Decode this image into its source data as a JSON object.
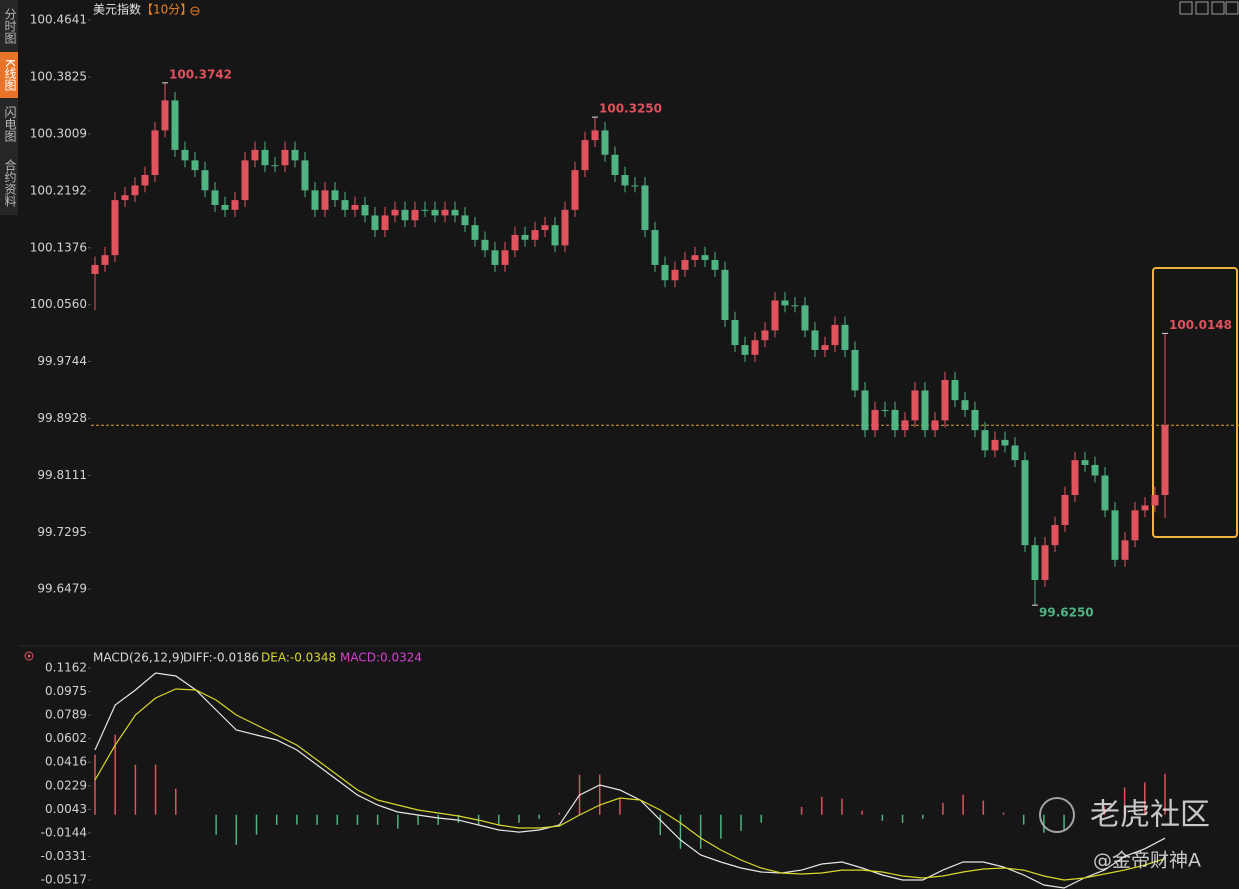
{
  "sidebar": [
    "分时图",
    "K线图",
    "闪电图",
    "合约资料"
  ],
  "chart_data": [
    {
      "type": "candlestick",
      "title": "美元指数",
      "period": "【10分】",
      "up_color": "#e0525d",
      "down_color": "#4fb382",
      "ylim": [
        99.575,
        100.493
      ],
      "yticks": [
        100.4641,
        100.3825,
        100.3009,
        100.2192,
        100.1376,
        {
          "value": 100.056,
          "label": "100.0560"
        },
        99.9744,
        99.8928,
        99.8111,
        99.7295,
        99.6479
      ],
      "price_line": 99.883,
      "price_line_color": "#d9a23a",
      "annotations": [
        {
          "value": 100.3742,
          "label": "100.3742"
        },
        {
          "value": 100.325,
          "label": "100.3250"
        },
        {
          "value": 99.625,
          "label": "99.6250"
        },
        {
          "value": 100.0148,
          "label": "100.0148"
        }
      ],
      "open": [
        100.1,
        100.113,
        100.127,
        100.206,
        100.213,
        100.227,
        100.242,
        100.306,
        100.349,
        100.278,
        100.263,
        100.249,
        100.22,
        100.199,
        100.192,
        100.206,
        100.263,
        100.278,
        100.256,
        100.256,
        100.278,
        100.263,
        100.22,
        100.192,
        100.22,
        100.206,
        100.192,
        100.199,
        100.184,
        100.163,
        100.184,
        100.192,
        100.177,
        100.192,
        100.192,
        100.184,
        100.192,
        100.184,
        100.17,
        100.149,
        100.134,
        100.113,
        100.134,
        100.156,
        100.149,
        100.163,
        100.17,
        100.141,
        100.192,
        100.249,
        100.292,
        100.306,
        100.271,
        100.242,
        100.227,
        100.227,
        100.163,
        100.113,
        100.091,
        100.106,
        100.12,
        100.127,
        100.12,
        100.106,
        100.034,
        99.998,
        99.984,
        100.005,
        100.019,
        100.062,
        100.055,
        100.055,
        100.019,
        99.991,
        99.998,
        100.027,
        99.991,
        99.933,
        99.876,
        99.905,
        99.905,
        99.876,
        99.89,
        99.933,
        99.876,
        99.89,
        99.948,
        99.919,
        99.905,
        99.876,
        99.847,
        99.862,
        99.854,
        99.833,
        99.711,
        99.661,
        99.711,
        99.74,
        99.783,
        99.833,
        99.826,
        99.811,
        99.761,
        99.69,
        99.718,
        99.761,
        99.768,
        99.783
      ],
      "high": [
        100.125,
        100.139,
        100.218,
        100.225,
        100.239,
        100.254,
        100.318,
        100.3742,
        100.361,
        100.29,
        100.275,
        100.261,
        100.232,
        100.211,
        100.218,
        100.275,
        100.29,
        100.29,
        100.268,
        100.29,
        100.29,
        100.275,
        100.232,
        100.232,
        100.232,
        100.218,
        100.211,
        100.211,
        100.196,
        100.196,
        100.204,
        100.204,
        100.204,
        100.204,
        100.204,
        100.204,
        100.204,
        100.196,
        100.182,
        100.161,
        100.146,
        100.146,
        100.168,
        100.168,
        100.175,
        100.182,
        100.182,
        100.204,
        100.261,
        100.304,
        100.325,
        100.318,
        100.283,
        100.254,
        100.239,
        100.239,
        100.175,
        100.125,
        100.118,
        100.132,
        100.139,
        100.139,
        100.132,
        100.118,
        100.046,
        100.01,
        100.017,
        100.031,
        100.074,
        100.074,
        100.067,
        100.067,
        100.031,
        100.01,
        100.039,
        100.039,
        100.003,
        99.945,
        99.917,
        99.917,
        99.917,
        99.902,
        99.945,
        99.945,
        99.902,
        99.96,
        99.96,
        99.931,
        99.917,
        99.888,
        99.874,
        99.874,
        99.866,
        99.845,
        99.723,
        99.723,
        99.752,
        99.795,
        99.845,
        99.845,
        99.838,
        99.823,
        99.773,
        99.73,
        99.773,
        99.78,
        99.795,
        100.0148
      ],
      "low": [
        100.048,
        100.103,
        100.117,
        100.196,
        100.203,
        100.217,
        100.232,
        100.296,
        100.268,
        100.253,
        100.239,
        100.21,
        100.189,
        100.182,
        100.182,
        100.196,
        100.253,
        100.246,
        100.246,
        100.246,
        100.253,
        100.21,
        100.182,
        100.182,
        100.196,
        100.182,
        100.182,
        100.174,
        100.153,
        100.153,
        100.174,
        100.167,
        100.167,
        100.182,
        100.174,
        100.174,
        100.174,
        100.16,
        100.139,
        100.124,
        100.103,
        100.103,
        100.124,
        100.139,
        100.139,
        100.153,
        100.131,
        100.131,
        100.182,
        100.239,
        100.282,
        100.261,
        100.232,
        100.217,
        100.217,
        100.153,
        100.103,
        100.081,
        100.081,
        100.096,
        100.11,
        100.11,
        100.096,
        100.024,
        99.988,
        99.974,
        99.974,
        99.995,
        100.009,
        100.045,
        100.045,
        100.009,
        99.981,
        99.981,
        99.988,
        99.981,
        99.923,
        99.866,
        99.866,
        99.895,
        99.866,
        99.866,
        99.88,
        99.866,
        99.866,
        99.88,
        99.909,
        99.895,
        99.866,
        99.837,
        99.837,
        99.844,
        99.823,
        99.701,
        99.625,
        99.651,
        99.701,
        99.73,
        99.773,
        99.816,
        99.801,
        99.751,
        99.68,
        99.68,
        99.708,
        99.751,
        99.758,
        99.75
      ],
      "close": [
        100.113,
        100.127,
        100.206,
        100.213,
        100.227,
        100.242,
        100.306,
        100.349,
        100.278,
        100.263,
        100.249,
        100.22,
        100.199,
        100.192,
        100.206,
        100.263,
        100.278,
        100.256,
        100.256,
        100.278,
        100.263,
        100.22,
        100.192,
        100.22,
        100.206,
        100.192,
        100.199,
        100.184,
        100.163,
        100.184,
        100.192,
        100.177,
        100.192,
        100.192,
        100.184,
        100.192,
        100.184,
        100.17,
        100.149,
        100.134,
        100.113,
        100.134,
        100.156,
        100.149,
        100.163,
        100.17,
        100.141,
        100.192,
        100.249,
        100.292,
        100.306,
        100.271,
        100.242,
        100.227,
        100.227,
        100.163,
        100.113,
        100.091,
        100.106,
        100.12,
        100.127,
        100.12,
        100.106,
        100.034,
        99.998,
        99.984,
        100.005,
        100.019,
        100.062,
        100.055,
        100.055,
        100.019,
        99.991,
        99.998,
        100.027,
        99.991,
        99.933,
        99.876,
        99.905,
        99.905,
        99.876,
        99.89,
        99.933,
        99.876,
        99.89,
        99.948,
        99.919,
        99.905,
        99.876,
        99.847,
        99.862,
        99.854,
        99.833,
        99.711,
        99.661,
        99.711,
        99.74,
        99.783,
        99.833,
        99.826,
        99.811,
        99.761,
        99.69,
        99.718,
        99.761,
        99.768,
        99.783,
        99.883
      ]
    },
    {
      "type": "macd",
      "title": "MACD(26,12,9)",
      "diff_label": "DIFF:-0.0186",
      "dea_label": "DEA:-0.0348",
      "macd_label": "MACD:0.0324",
      "ylim": [
        -0.0588,
        0.1186
      ],
      "yticks": [
        0.1162,
        0.0975,
        0.0789,
        0.0602,
        0.0416,
        0.0229,
        0.0043,
        -0.0144,
        -0.0331,
        -0.0517
      ],
      "series": [
        {
          "color": "#e6e6e6",
          "values": [
            0.0513,
            0.0869,
            0.0988,
            0.1123,
            0.1099,
            0.0988,
            0.083,
            0.0671,
            0.0632,
            0.0592,
            0.0513,
            0.0394,
            0.0275,
            0.0156,
            0.0077,
            0.0022,
            -0.0002,
            -0.0026,
            -0.0042,
            -0.0081,
            -0.0121,
            -0.0137,
            -0.0121,
            -0.0081,
            0.0156,
            0.0236,
            0.0196,
            0.0117,
            -0.0042,
            -0.02,
            -0.0319,
            -0.0374,
            -0.0422,
            -0.0453,
            -0.0461,
            -0.0438,
            -0.039,
            -0.0374,
            -0.0422,
            -0.0477,
            -0.0517,
            -0.0517,
            -0.0438,
            -0.0374,
            -0.0374,
            -0.0414,
            -0.0477,
            -0.0556,
            -0.058,
            -0.0501,
            -0.0438,
            -0.033,
            -0.027,
            -0.0186
          ]
        },
        {
          "color": "#d8d82a",
          "values": [
            0.0275,
            0.0552,
            0.079,
            0.0925,
            0.0996,
            0.0988,
            0.0909,
            0.079,
            0.0711,
            0.0632,
            0.0552,
            0.0434,
            0.0315,
            0.0196,
            0.0117,
            0.0077,
            0.0038,
            0.0014,
            -0.001,
            -0.0042,
            -0.0081,
            -0.0105,
            -0.0105,
            -0.0089,
            -0.0002,
            0.0077,
            0.0133,
            0.0117,
            0.0038,
            -0.0065,
            -0.0184,
            -0.0279,
            -0.0358,
            -0.0422,
            -0.0461,
            -0.0469,
            -0.0461,
            -0.0438,
            -0.0438,
            -0.0453,
            -0.0485,
            -0.0501,
            -0.0485,
            -0.0453,
            -0.043,
            -0.0422,
            -0.0438,
            -0.0485,
            -0.0517,
            -0.0501,
            -0.0469,
            -0.0438,
            -0.0398,
            -0.0348
          ]
        }
      ],
      "histogram": {
        "up_color": "#e0525d",
        "down_color": "#4fb382",
        "values": [
          0.0476,
          0.0634,
          0.0396,
          0.0396,
          0.0206,
          0,
          -0.0158,
          -0.0238,
          -0.0158,
          -0.008,
          -0.0078,
          -0.008,
          -0.008,
          -0.008,
          -0.008,
          -0.011,
          -0.008,
          -0.008,
          -0.0064,
          -0.0078,
          -0.008,
          -0.0064,
          -0.0032,
          0.0016,
          0.0316,
          0.0318,
          0.0126,
          0,
          -0.016,
          -0.027,
          -0.027,
          -0.019,
          -0.0128,
          -0.0062,
          0,
          0.0062,
          0.0142,
          0.0128,
          0.0032,
          -0.0048,
          -0.0064,
          -0.0032,
          0.0094,
          0.0158,
          0.0112,
          0.0016,
          -0.0078,
          -0.0142,
          -0.0126,
          0,
          0.0062,
          0.0216,
          0.0256,
          0.0324
        ]
      }
    }
  ],
  "watermark": {
    "brand": "老虎社区",
    "author": "@金帝财神A"
  }
}
